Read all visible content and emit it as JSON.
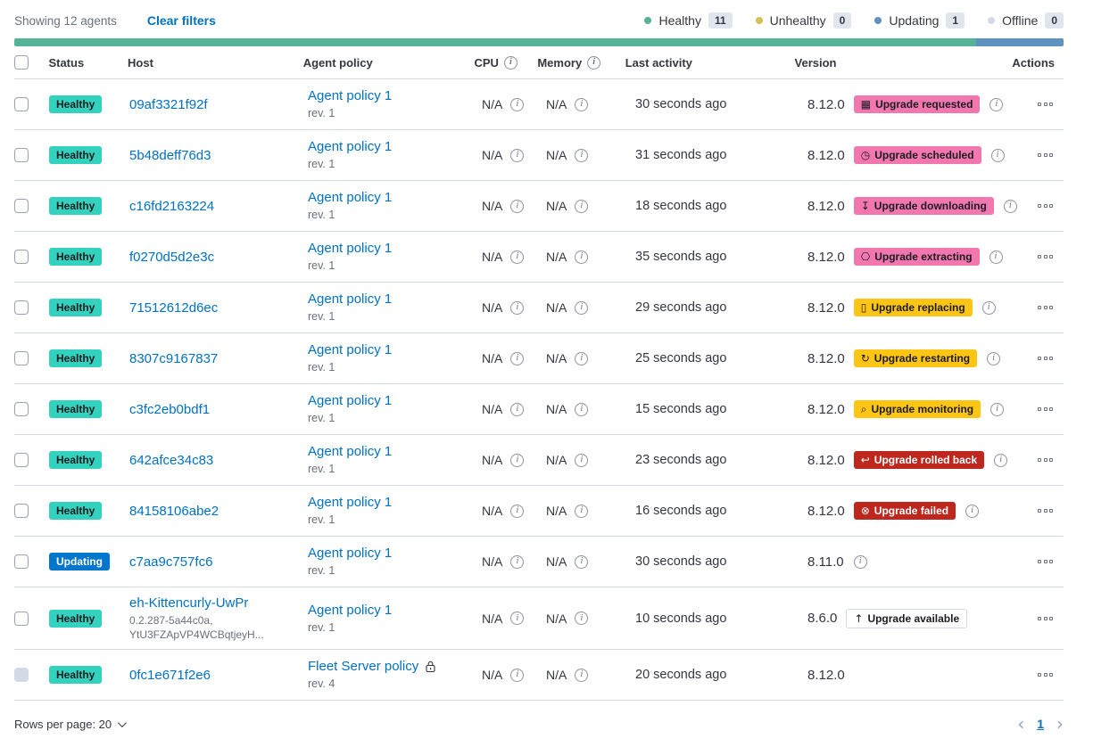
{
  "colors": {
    "healthy_badge": "#32d2be",
    "updating_badge": "#0077cc",
    "pink_badge": "#f277af",
    "warning_badge": "#fec514",
    "danger_badge": "#bd271e",
    "link_blue": "#0071c2"
  },
  "header": {
    "showing": "Showing 12 agents",
    "clear_filters": "Clear filters",
    "legend": [
      {
        "label": "Healthy",
        "count": "11",
        "color": "#54b399"
      },
      {
        "label": "Unhealthy",
        "count": "0",
        "color": "#d6bf57"
      },
      {
        "label": "Updating",
        "count": "1",
        "color": "#6092c0"
      },
      {
        "label": "Offline",
        "count": "0",
        "color": "#d3dae6"
      }
    ],
    "health_bar": [
      {
        "color": "#54b399",
        "fraction": 0.9167
      },
      {
        "color": "#6092c0",
        "fraction": 0.0833
      }
    ]
  },
  "table": {
    "columns": {
      "status": "Status",
      "host": "Host",
      "policy": "Agent policy",
      "cpu": "CPU",
      "memory": "Memory",
      "activity": "Last activity",
      "version": "Version",
      "actions": "Actions"
    },
    "rows": [
      {
        "status": {
          "label": "Healthy",
          "variant": "healthy"
        },
        "host": {
          "name": "09af3321f92f"
        },
        "policy": {
          "name": "Agent policy 1",
          "revision": "rev. 1",
          "locked": false
        },
        "cpu": "N/A",
        "memory": "N/A",
        "last_activity": "30 seconds ago",
        "version": "8.12.0",
        "upgrade": {
          "label": "Upgrade requested",
          "variant": "pink",
          "icon": "▦",
          "icon_name": "calendar-icon"
        },
        "version_info": true
      },
      {
        "status": {
          "label": "Healthy",
          "variant": "healthy"
        },
        "host": {
          "name": "5b48deff76d3"
        },
        "policy": {
          "name": "Agent policy 1",
          "revision": "rev. 1",
          "locked": false
        },
        "cpu": "N/A",
        "memory": "N/A",
        "last_activity": "31 seconds ago",
        "version": "8.12.0",
        "upgrade": {
          "label": "Upgrade scheduled",
          "variant": "pink",
          "icon": "◷",
          "icon_name": "clock-icon"
        },
        "version_info": true
      },
      {
        "status": {
          "label": "Healthy",
          "variant": "healthy"
        },
        "host": {
          "name": "c16fd2163224"
        },
        "policy": {
          "name": "Agent policy 1",
          "revision": "rev. 1",
          "locked": false
        },
        "cpu": "N/A",
        "memory": "N/A",
        "last_activity": "18 seconds ago",
        "version": "8.12.0",
        "upgrade": {
          "label": "Upgrade downloading",
          "variant": "pink",
          "icon": "↧",
          "icon_name": "download-icon"
        },
        "version_info": true
      },
      {
        "status": {
          "label": "Healthy",
          "variant": "healthy"
        },
        "host": {
          "name": "f0270d5d2e3c"
        },
        "policy": {
          "name": "Agent policy 1",
          "revision": "rev. 1",
          "locked": false
        },
        "cpu": "N/A",
        "memory": "N/A",
        "last_activity": "35 seconds ago",
        "version": "8.12.0",
        "upgrade": {
          "label": "Upgrade extracting",
          "variant": "pink",
          "icon": "⎔",
          "icon_name": "package-icon"
        },
        "version_info": true
      },
      {
        "status": {
          "label": "Healthy",
          "variant": "healthy"
        },
        "host": {
          "name": "71512612d6ec"
        },
        "policy": {
          "name": "Agent policy 1",
          "revision": "rev. 1",
          "locked": false
        },
        "cpu": "N/A",
        "memory": "N/A",
        "last_activity": "29 seconds ago",
        "version": "8.12.0",
        "upgrade": {
          "label": "Upgrade replacing",
          "variant": "warning",
          "icon": "▯",
          "icon_name": "document-icon"
        },
        "version_info": true
      },
      {
        "status": {
          "label": "Healthy",
          "variant": "healthy"
        },
        "host": {
          "name": "8307c9167837"
        },
        "policy": {
          "name": "Agent policy 1",
          "revision": "rev. 1",
          "locked": false
        },
        "cpu": "N/A",
        "memory": "N/A",
        "last_activity": "25 seconds ago",
        "version": "8.12.0",
        "upgrade": {
          "label": "Upgrade restarting",
          "variant": "warning",
          "icon": "↻",
          "icon_name": "refresh-icon"
        },
        "version_info": true
      },
      {
        "status": {
          "label": "Healthy",
          "variant": "healthy"
        },
        "host": {
          "name": "c3fc2eb0bdf1"
        },
        "policy": {
          "name": "Agent policy 1",
          "revision": "rev. 1",
          "locked": false
        },
        "cpu": "N/A",
        "memory": "N/A",
        "last_activity": "15 seconds ago",
        "version": "8.12.0",
        "upgrade": {
          "label": "Upgrade monitoring",
          "variant": "warning",
          "icon": "⌕",
          "icon_name": "inspect-icon"
        },
        "version_info": true
      },
      {
        "status": {
          "label": "Healthy",
          "variant": "healthy"
        },
        "host": {
          "name": "642afce34c83"
        },
        "policy": {
          "name": "Agent policy 1",
          "revision": "rev. 1",
          "locked": false
        },
        "cpu": "N/A",
        "memory": "N/A",
        "last_activity": "23 seconds ago",
        "version": "8.12.0",
        "upgrade": {
          "label": "Upgrade rolled back",
          "variant": "danger",
          "icon": "↩",
          "icon_name": "return-icon"
        },
        "version_info": true
      },
      {
        "status": {
          "label": "Healthy",
          "variant": "healthy"
        },
        "host": {
          "name": "84158106abe2"
        },
        "policy": {
          "name": "Agent policy 1",
          "revision": "rev. 1",
          "locked": false
        },
        "cpu": "N/A",
        "memory": "N/A",
        "last_activity": "16 seconds ago",
        "version": "8.12.0",
        "upgrade": {
          "label": "Upgrade failed",
          "variant": "danger",
          "icon": "⊗",
          "icon_name": "error-icon"
        },
        "version_info": true
      },
      {
        "status": {
          "label": "Updating",
          "variant": "updating"
        },
        "host": {
          "name": "c7aa9c757fc6"
        },
        "policy": {
          "name": "Agent policy 1",
          "revision": "rev. 1",
          "locked": false
        },
        "cpu": "N/A",
        "memory": "N/A",
        "last_activity": "30 seconds ago",
        "version": "8.11.0",
        "upgrade": null,
        "version_info": true
      },
      {
        "status": {
          "label": "Healthy",
          "variant": "healthy"
        },
        "host": {
          "name": "eh-Kittencurly-UwPr",
          "sub_lines": [
            "0.2.287-5a44c0a,",
            "YtU3FZApVP4WCBqtjeyH..."
          ]
        },
        "policy": {
          "name": "Agent policy 1",
          "revision": "rev. 1",
          "locked": false
        },
        "cpu": "N/A",
        "memory": "N/A",
        "last_activity": "10 seconds ago",
        "version": "8.6.0",
        "upgrade": {
          "label": "Upgrade available",
          "variant": "hollow",
          "icon": "↑",
          "icon_name": "arrow-up-icon"
        },
        "version_info": false
      },
      {
        "status": {
          "label": "Healthy",
          "variant": "healthy"
        },
        "host": {
          "name": "0fc1e671f2e6"
        },
        "policy": {
          "name": "Fleet Server policy",
          "revision": "rev. 4",
          "locked": true
        },
        "cpu": "N/A",
        "memory": "N/A",
        "last_activity": "20 seconds ago",
        "version": "8.12.0",
        "upgrade": null,
        "version_info": false,
        "checkbox_disabled": true
      }
    ]
  },
  "footer": {
    "rows_per_page": "Rows per page: 20",
    "page": "1",
    "prev_arrow": "‹",
    "next_arrow": "›"
  }
}
